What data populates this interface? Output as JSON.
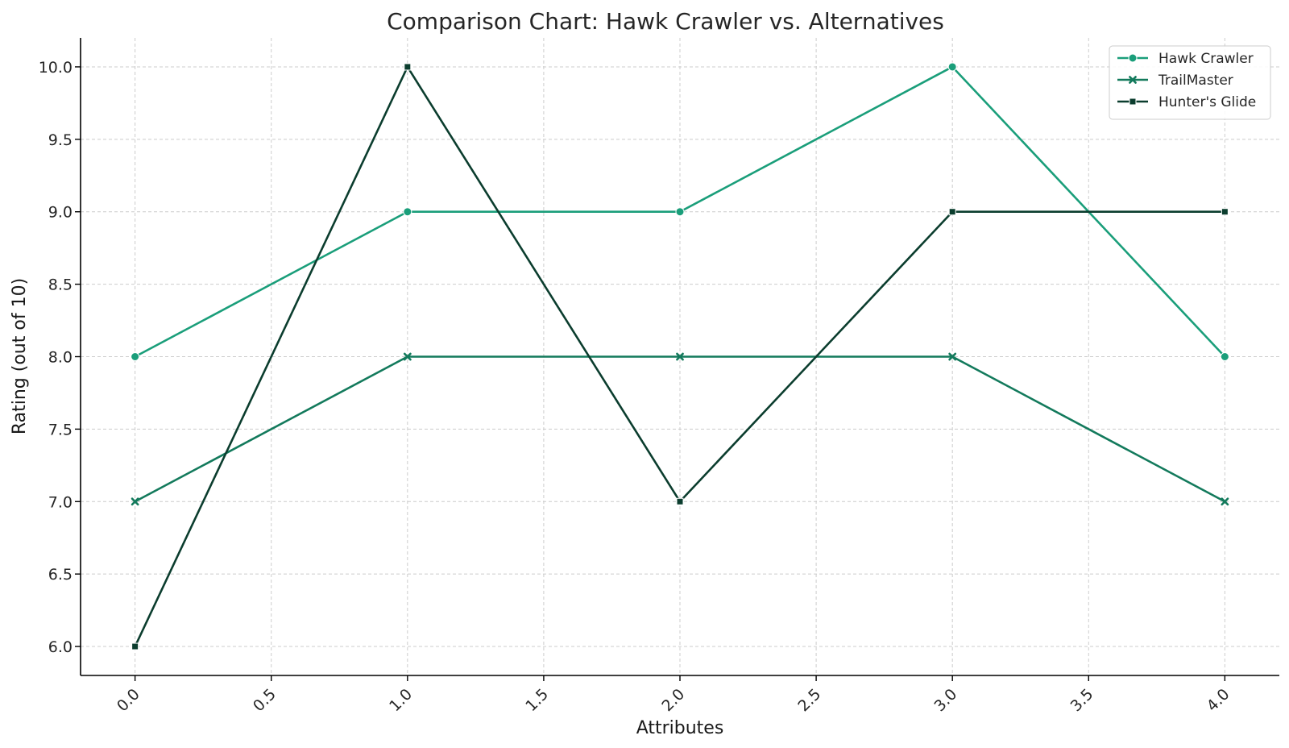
{
  "chart_data": {
    "type": "line",
    "title": "Comparison Chart: Hawk Crawler vs. Alternatives",
    "xlabel": "Attributes",
    "ylabel": "Rating (out of 10)",
    "xlim": [
      -0.2,
      4.2
    ],
    "ylim": [
      5.8,
      10.2
    ],
    "xticks": [
      0.0,
      0.5,
      1.0,
      1.5,
      2.0,
      2.5,
      3.0,
      3.5,
      4.0
    ],
    "xtick_labels": [
      "0.0",
      "0.5",
      "1.0",
      "1.5",
      "2.0",
      "2.5",
      "3.0",
      "3.5",
      "4.0"
    ],
    "yticks": [
      6.0,
      6.5,
      7.0,
      7.5,
      8.0,
      8.5,
      9.0,
      9.5,
      10.0
    ],
    "ytick_labels": [
      "6.0",
      "6.5",
      "7.0",
      "7.5",
      "8.0",
      "8.5",
      "9.0",
      "9.5",
      "10.0"
    ],
    "grid": true,
    "legend_position": "top-right",
    "x": [
      0,
      1,
      2,
      3,
      4
    ],
    "series": [
      {
        "name": "Hawk Crawler",
        "values": [
          8,
          9,
          9,
          10,
          8
        ],
        "color": "#1a9e7a",
        "marker": "circle"
      },
      {
        "name": "TrailMaster",
        "values": [
          7,
          8,
          8,
          8,
          7
        ],
        "color": "#137a5c",
        "marker": "x"
      },
      {
        "name": "Hunter's Glide",
        "values": [
          6,
          10,
          7,
          9,
          9
        ],
        "color": "#0b3d2e",
        "marker": "square"
      }
    ]
  }
}
